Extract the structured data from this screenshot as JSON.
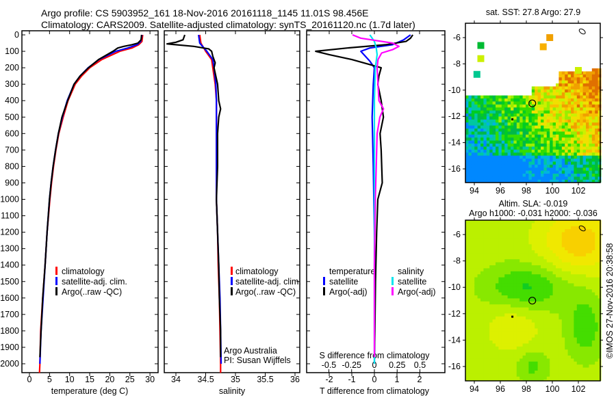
{
  "header": {
    "line1": "Argo profile: CS 5903952_161 18-Nov-2016 20161118_1145 11.01S 98.456E",
    "line2": "Climatology: CARS2009. Satellite-adjusted climatology: synTS_20161120.nc (1.7d later)"
  },
  "colors": {
    "climatology": "#ff0000",
    "satellite": "#0000ff",
    "argo": "#000000",
    "sal_satellite": "#00e5ee",
    "sal_argo": "#ff00ff"
  },
  "chart_data": [
    {
      "type": "line",
      "title": "",
      "xlabel": "temperature (deg C)",
      "ylabel": "",
      "xlim": [
        -2,
        32
      ],
      "ylim": [
        2055,
        0
      ],
      "xticks": [
        "0",
        "5",
        "10",
        "15",
        "20",
        "25",
        "30"
      ],
      "yticks": [
        "0",
        "100",
        "200",
        "300",
        "400",
        "500",
        "600",
        "700",
        "800",
        "900",
        "1000",
        "1100",
        "1200",
        "1300",
        "1400",
        "1500",
        "1600",
        "1700",
        "1800",
        "1900",
        "2000"
      ],
      "legend": [
        "climatology",
        "satellite-adj. clim.",
        "Argo(..raw -QC)"
      ],
      "legend_position": "lower-middle",
      "series": [
        {
          "name": "climatology",
          "color": "#ff0000",
          "depth": [
            0,
            40,
            60,
            80,
            100,
            150,
            200,
            250,
            300,
            400,
            500,
            600,
            700,
            800,
            900,
            1000,
            1200,
            1400,
            1600,
            1800,
            2000,
            2055
          ],
          "values": [
            28.2,
            28,
            27.2,
            25.5,
            22.5,
            18,
            15,
            13,
            11.4,
            9.6,
            8.4,
            7.3,
            6.6,
            6,
            5.5,
            5.1,
            4.4,
            3.9,
            3.3,
            2.8,
            2.6,
            2.5
          ]
        },
        {
          "name": "satellite-adj. clim.",
          "color": "#0000ff",
          "depth": [
            0,
            40,
            60,
            80,
            100,
            150,
            200,
            250,
            300,
            400,
            500,
            600,
            700,
            800,
            900,
            1000,
            1200,
            1400,
            1600,
            1800,
            2000
          ],
          "values": [
            28,
            27.7,
            26.8,
            24.5,
            21.5,
            17.3,
            14.6,
            12.6,
            11.1,
            9.4,
            8.2,
            7.2,
            6.5,
            5.9,
            5.4,
            5.0,
            4.4,
            3.9,
            3.4,
            2.9,
            2.6
          ]
        },
        {
          "name": "Argo(..raw -QC)",
          "color": "#000000",
          "depth": [
            0,
            30,
            50,
            60,
            70,
            80,
            100,
            150,
            200,
            250,
            300,
            400,
            500,
            600,
            700,
            800,
            900,
            1000,
            1200,
            1400,
            1600,
            1800,
            1960
          ],
          "values": [
            27.9,
            27.8,
            27,
            25.5,
            23.5,
            22,
            20.8,
            17.2,
            14.7,
            12.6,
            11.1,
            9.5,
            8.1,
            7.2,
            6.5,
            5.9,
            5.4,
            5.0,
            4.4,
            3.9,
            3.3,
            2.9,
            2.6
          ]
        }
      ]
    },
    {
      "type": "line",
      "xlabel": "salinity",
      "xlim": [
        33.8,
        36.1
      ],
      "ylim": [
        2055,
        0
      ],
      "xticks": [
        "34",
        "34.5",
        "35",
        "35.5",
        "36"
      ],
      "legend": [
        "climatology",
        "satellite-adj. clim.",
        "Argo(..raw -QC)"
      ],
      "legend_position": "lower-right",
      "annotation": [
        "Argo Australia",
        "PI: Susan Wijffels"
      ],
      "series": [
        {
          "name": "climatology",
          "color": "#ff0000",
          "depth": [
            0,
            50,
            100,
            150,
            200,
            300,
            400,
            600,
            800,
            1000,
            1200,
            1400,
            1600,
            1800,
            2000,
            2055
          ],
          "values": [
            34.4,
            34.42,
            34.5,
            34.6,
            34.62,
            34.66,
            34.68,
            34.68,
            34.68,
            34.68,
            34.7,
            34.71,
            34.73,
            34.74,
            34.75,
            34.75
          ]
        },
        {
          "name": "satellite-adj. clim.",
          "color": "#0000ff",
          "depth": [
            0,
            50,
            100,
            150,
            200,
            300,
            400,
            600,
            800,
            1000,
            1200,
            1400,
            1600,
            1800,
            2000
          ],
          "values": [
            34.38,
            34.4,
            34.52,
            34.62,
            34.64,
            34.67,
            34.68,
            34.68,
            34.68,
            34.68,
            34.7,
            34.72,
            34.74,
            34.75,
            34.76
          ]
        },
        {
          "name": "Argo(..raw -QC)",
          "color": "#000000",
          "depth": [
            0,
            30,
            45,
            55,
            70,
            85,
            100,
            130,
            170,
            200,
            300,
            400,
            450,
            500,
            600,
            800,
            1000,
            1200,
            1400,
            1600,
            1800,
            1960
          ],
          "values": [
            34.15,
            34.12,
            34.0,
            33.85,
            34.3,
            34.55,
            34.6,
            34.62,
            34.66,
            34.64,
            34.7,
            34.72,
            34.75,
            34.72,
            34.7,
            34.7,
            34.68,
            34.7,
            34.72,
            34.73,
            34.75,
            34.75
          ]
        }
      ]
    },
    {
      "type": "line",
      "xlabel": "T difference from climatology",
      "xlabel2": "S difference from climatology",
      "xlim": [
        -3,
        3.1
      ],
      "ylim": [
        2055,
        0
      ],
      "xticks": [
        "-2",
        "-1",
        "0",
        "1",
        "2"
      ],
      "xticks2": [
        "-0.5",
        "-0.25",
        "0",
        "0.25",
        "0.5"
      ],
      "legend_headers": [
        "temperature",
        "salinity"
      ],
      "legend": [
        "satellite",
        "Argo(-adj)",
        "satellite",
        "Argo(-adj)"
      ],
      "legend_position": "lower-middle",
      "series": [
        {
          "name": "T satellite",
          "color": "#0000ff",
          "axis": "T",
          "depth": [
            0,
            30,
            60,
            80,
            100,
            130,
            160,
            200,
            300,
            500,
            800,
            1200,
            1600,
            2000
          ],
          "values": [
            1.6,
            1.3,
            0.8,
            -0.2,
            -0.6,
            -0.4,
            -0.2,
            0,
            -0.05,
            -0.1,
            -0.05,
            0,
            0.02,
            0
          ]
        },
        {
          "name": "T Argo(-adj)",
          "color": "#000000",
          "axis": "T",
          "depth": [
            0,
            20,
            40,
            60,
            80,
            100,
            120,
            150,
            200,
            250,
            300,
            400,
            500,
            600,
            700,
            900,
            1000,
            1200,
            1500,
            1800,
            1960
          ],
          "values": [
            1.7,
            1.6,
            1.4,
            0.5,
            -1.2,
            -2.6,
            -2.0,
            -1.0,
            0.3,
            0.2,
            0.15,
            0.3,
            0.4,
            0.25,
            0.3,
            0.35,
            0.15,
            0.1,
            0.05,
            0.02,
            0
          ]
        },
        {
          "name": "S satellite",
          "color": "#00e5ee",
          "axis": "S",
          "depth": [
            0,
            40,
            80,
            120,
            200,
            400,
            800,
            1200,
            1600,
            2000
          ],
          "values": [
            -0.05,
            0.0,
            0.02,
            0.03,
            0.01,
            0.0,
            0.0,
            0.0,
            0.0,
            0.0
          ]
        },
        {
          "name": "S Argo(-adj)",
          "color": "#ff00ff",
          "axis": "S",
          "depth": [
            0,
            20,
            50,
            70,
            90,
            110,
            150,
            200,
            300,
            400,
            450,
            500,
            600,
            800,
            1000,
            1400,
            1800,
            1960
          ],
          "values": [
            -0.24,
            -0.15,
            0.2,
            0.27,
            0.2,
            0.08,
            0.04,
            0.03,
            0.04,
            0.05,
            0.1,
            0.06,
            0.03,
            0.02,
            0.01,
            0,
            0,
            0
          ]
        }
      ]
    }
  ],
  "maps": {
    "sst_title": "sat. SST: 27.8 Argo: 27.9",
    "sla_title1": "Altim. SLA: -0.019",
    "sla_title2": "Argo h1000: -0.031 h2000: -0.036",
    "lon_ticks": [
      "94",
      "96",
      "98",
      "100",
      "102"
    ],
    "lat_ticks": [
      "-6",
      "-8",
      "-10",
      "-12",
      "-14",
      "-16"
    ],
    "argo_lon": 98.456,
    "argo_lat": -11.01
  },
  "footer": {
    "copyright": "©IMOS 27-Nov-2016 20:38:58"
  }
}
